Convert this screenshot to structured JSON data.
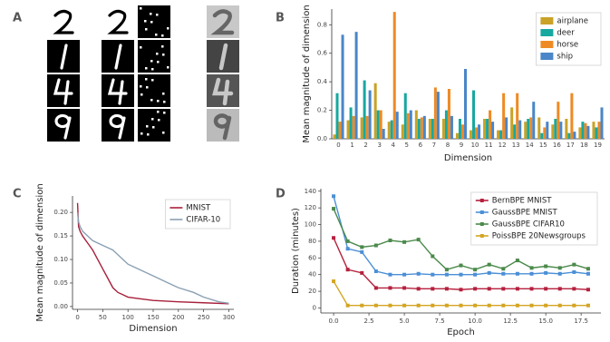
{
  "panel_labels": [
    "A",
    "B",
    "C",
    "D"
  ],
  "chart_data": [
    {
      "type": "bar",
      "xlabel": "Dimension",
      "ylabel": "Mean magnitude of dimension",
      "categories": [
        "0",
        "1",
        "2",
        "3",
        "4",
        "5",
        "6",
        "7",
        "8",
        "9",
        "10",
        "11",
        "12",
        "13",
        "14",
        "15",
        "16",
        "17",
        "18",
        "19"
      ],
      "ylim": [
        0,
        0.91
      ],
      "yticks": [
        {
          "value": 0,
          "label": "0.0"
        },
        0.2,
        0.4,
        0.6,
        0.8
      ],
      "legend": "upper right",
      "series": [
        {
          "name": "airplane",
          "color": "#c9a227",
          "values": [
            0.03,
            0.13,
            0.15,
            0.39,
            0.12,
            0.1,
            0.2,
            0.14,
            0.14,
            0.04,
            0.06,
            0.14,
            0.06,
            0.22,
            0.12,
            0.15,
            0.1,
            0.14,
            0.08,
            0.12
          ]
        },
        {
          "name": "deer",
          "color": "#17a8a0",
          "values": [
            0.32,
            0.22,
            0.41,
            0.2,
            0.13,
            0.32,
            0.14,
            0.14,
            0.2,
            0.14,
            0.34,
            0.14,
            0.06,
            0.1,
            0.14,
            0.04,
            0.14,
            0.04,
            0.12,
            0.08
          ]
        },
        {
          "name": "horse",
          "color": "#ee8a25",
          "values": [
            0.12,
            0.16,
            0.16,
            0.2,
            0.89,
            0.18,
            0.15,
            0.36,
            0.35,
            0.1,
            0.08,
            0.2,
            0.32,
            0.32,
            0.15,
            0.08,
            0.26,
            0.32,
            0.11,
            0.12
          ]
        },
        {
          "name": "ship",
          "color": "#4a86c8",
          "values": [
            0.73,
            0.75,
            0.34,
            0.07,
            0.19,
            0.2,
            0.16,
            0.33,
            0.16,
            0.49,
            0.1,
            0.12,
            0.15,
            0.13,
            0.26,
            0.12,
            0.12,
            0.05,
            0.09,
            0.22
          ]
        }
      ]
    },
    {
      "type": "line",
      "xlabel": "Dimension",
      "ylabel": "Mean magnitude of dimension",
      "xlim": [
        -10,
        310
      ],
      "xticks": [
        0,
        50,
        100,
        150,
        200,
        250,
        300
      ],
      "ylim": [
        -0.006,
        0.235
      ],
      "yticks": [
        {
          "value": 0,
          "label": "0.00"
        },
        0.05,
        {
          "value": 0.1,
          "label": "0.10"
        },
        0.15,
        {
          "value": 0.2,
          "label": "0.20"
        }
      ],
      "legend": "upper right",
      "series": [
        {
          "name": "MNIST",
          "color": "#a8203c",
          "x": [
            0,
            2,
            5,
            10,
            20,
            30,
            40,
            50,
            60,
            70,
            80,
            90,
            100,
            120,
            150,
            200,
            250,
            300
          ],
          "values": [
            0.22,
            0.17,
            0.16,
            0.15,
            0.135,
            0.12,
            0.1,
            0.08,
            0.06,
            0.04,
            0.03,
            0.025,
            0.02,
            0.017,
            0.013,
            0.01,
            0.008,
            0.006
          ]
        },
        {
          "name": "CIFAR-10",
          "color": "#8aa0b2",
          "x": [
            0,
            2,
            5,
            10,
            20,
            30,
            50,
            70,
            90,
            100,
            120,
            150,
            180,
            200,
            230,
            250,
            280,
            300
          ],
          "values": [
            0.2,
            0.18,
            0.17,
            0.16,
            0.15,
            0.14,
            0.13,
            0.12,
            0.1,
            0.09,
            0.08,
            0.065,
            0.05,
            0.04,
            0.03,
            0.02,
            0.01,
            0.007
          ]
        }
      ]
    },
    {
      "type": "line",
      "xlabel": "Epoch",
      "ylabel": "Duration (minutes)",
      "markers": true,
      "x": [
        0,
        1,
        2,
        3,
        4,
        5,
        6,
        7,
        8,
        9,
        10,
        11,
        12,
        13,
        14,
        15,
        16,
        17,
        18
      ],
      "xlim": [
        -0.9,
        18.9
      ],
      "xticks": [
        {
          "value": 0,
          "label": "0.0"
        },
        2.5,
        {
          "value": 5,
          "label": "5.0"
        },
        7.5,
        {
          "value": 10,
          "label": "10.0"
        },
        12.5,
        {
          "value": 15,
          "label": "15.0"
        },
        17.5
      ],
      "ylim": [
        -6,
        143
      ],
      "yticks": [
        0,
        20,
        40,
        60,
        80,
        100,
        120,
        140
      ],
      "legend": "upper right",
      "series": [
        {
          "name": "BernBPE MNIST",
          "color": "#b5213e",
          "values": [
            84,
            46,
            42,
            24,
            24,
            24,
            23,
            23,
            23,
            22,
            23,
            23,
            23,
            23,
            23,
            23,
            23,
            23,
            22
          ]
        },
        {
          "name": "GaussBPE MNIST",
          "color": "#4b8fd6",
          "values": [
            134,
            71,
            67,
            44,
            40,
            40,
            41,
            40,
            40,
            40,
            40,
            42,
            41,
            41,
            41,
            42,
            41,
            43,
            41
          ]
        },
        {
          "name": "GaussBPE CIFAR10",
          "color": "#4b8a4b",
          "values": [
            119,
            80,
            73,
            75,
            81,
            79,
            82,
            62,
            46,
            51,
            46,
            52,
            47,
            57,
            48,
            50,
            48,
            52,
            47
          ]
        },
        {
          "name": "PoissBPE 20Newsgroups",
          "color": "#d4a523",
          "values": [
            32,
            3,
            3,
            3,
            3,
            3,
            3,
            3,
            3,
            3,
            3,
            3,
            3,
            3,
            3,
            3,
            3,
            3,
            3
          ]
        }
      ]
    }
  ]
}
